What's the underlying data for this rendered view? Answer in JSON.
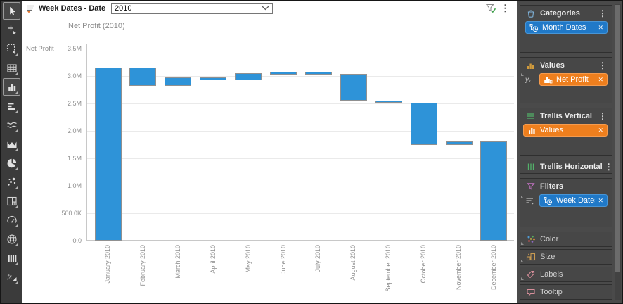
{
  "viz_header": {
    "filter_label": "Week Dates - Date",
    "dropdown_value": "2010"
  },
  "toolbar": {
    "tools": [
      {
        "name": "pointer",
        "icon": "pointer-icon",
        "selected": true
      },
      {
        "name": "axis-marking",
        "icon": "crosshair-marking-icon",
        "selected": false
      },
      {
        "name": "lasso-marking",
        "icon": "lasso-select-icon",
        "selected": false
      },
      {
        "name": "table",
        "icon": "table-icon",
        "selected": false
      },
      {
        "name": "bar-chart",
        "icon": "bar-chart-icon",
        "selected": true
      },
      {
        "name": "horizontal-bar-chart",
        "icon": "horizontal-bar-icon",
        "selected": false
      },
      {
        "name": "line-chart",
        "icon": "line-chart-icon",
        "selected": false
      },
      {
        "name": "area-chart",
        "icon": "area-chart-icon",
        "selected": false
      },
      {
        "name": "pie-chart",
        "icon": "pie-chart-icon",
        "selected": false
      },
      {
        "name": "scatter-plot",
        "icon": "scatter-plot-icon",
        "selected": false
      },
      {
        "name": "treemap",
        "icon": "treemap-icon",
        "selected": false
      },
      {
        "name": "gauge",
        "icon": "gauge-icon",
        "selected": false
      },
      {
        "name": "map",
        "icon": "globe-icon",
        "selected": false
      },
      {
        "name": "parallel-coordinates",
        "icon": "parallel-bars-icon",
        "selected": false
      },
      {
        "name": "custom-expression",
        "icon": "fx-icon",
        "selected": false
      }
    ]
  },
  "chart_data": {
    "type": "waterfall",
    "title": "Net Profit (2010)",
    "y_axis_title": "Net Profit",
    "categories": [
      "January 2010",
      "February 2010",
      "March 2010",
      "April 2010",
      "May 2010",
      "June 2010",
      "July 2010",
      "August 2010",
      "September 2010",
      "October 2010",
      "November 2010",
      "December 2010"
    ],
    "bar_ranges_millions": [
      [
        0,
        3.15
      ],
      [
        2.82,
        3.15
      ],
      [
        2.82,
        2.97
      ],
      [
        2.92,
        2.97
      ],
      [
        2.92,
        3.05
      ],
      [
        3.03,
        3.08
      ],
      [
        3.03,
        3.08
      ],
      [
        2.55,
        3.04
      ],
      [
        2.51,
        2.55
      ],
      [
        1.74,
        2.52
      ],
      [
        1.74,
        1.81
      ],
      [
        0,
        1.81
      ]
    ],
    "y_ticks": [
      {
        "label": "3.5M",
        "value": 3.5
      },
      {
        "label": "3.0M",
        "value": 3.0
      },
      {
        "label": "2.5M",
        "value": 2.5
      },
      {
        "label": "2.0M",
        "value": 2.0
      },
      {
        "label": "1.5M",
        "value": 1.5
      },
      {
        "label": "1.0M",
        "value": 1.0
      },
      {
        "label": "500.0K",
        "value": 0.5
      },
      {
        "label": "0.0",
        "value": 0.0
      }
    ],
    "ylim_millions": [
      0,
      3.59
    ],
    "grid": true,
    "x_labels_rotated": true,
    "bar_color": "#2e93d8",
    "legend": "none"
  },
  "panel": {
    "sections": [
      {
        "id": "categories",
        "title": "Categories",
        "icon": "bucket-icon",
        "menu": true,
        "pills": [
          {
            "label": "Month Dates",
            "color": "blue",
            "icon": "datetime-hierarchy-icon"
          }
        ]
      },
      {
        "id": "values",
        "title": "Values",
        "icon": "values-bars-icon",
        "menu": true,
        "axis_label": "y₁",
        "pills": [
          {
            "label": "Net Profit",
            "color": "orange",
            "icon": "measure-icon"
          }
        ]
      },
      {
        "id": "trellis-vertical",
        "title": "Trellis Vertical",
        "icon": "trellis-vertical-icon",
        "menu": true,
        "pills": [
          {
            "label": "Values",
            "color": "orange",
            "icon": "bars-icon"
          }
        ]
      },
      {
        "id": "trellis-horizontal",
        "title": "Trellis Horizontal",
        "icon": "trellis-horizontal-icon",
        "menu": true,
        "pills": []
      },
      {
        "id": "filters",
        "title": "Filters",
        "icon": "funnel-icon",
        "menu": false,
        "pills": [
          {
            "label": "Week Dates",
            "color": "blue",
            "icon": "datetime-hierarchy-icon"
          }
        ]
      },
      {
        "id": "color",
        "title": "Color",
        "icon": "color-dots-icon"
      },
      {
        "id": "size",
        "title": "Size",
        "icon": "size-icon"
      },
      {
        "id": "labels",
        "title": "Labels",
        "icon": "label-tag-icon"
      },
      {
        "id": "tooltip",
        "title": "Tooltip",
        "icon": "tooltip-bubble-icon"
      }
    ]
  },
  "colors": {
    "pill_blue": "#2079c8",
    "pill_orange": "#ee7f1e",
    "bar_blue": "#2e93d8",
    "panel_bg": "#4a4a4a",
    "toolbar_bg": "#3b3b3b"
  }
}
